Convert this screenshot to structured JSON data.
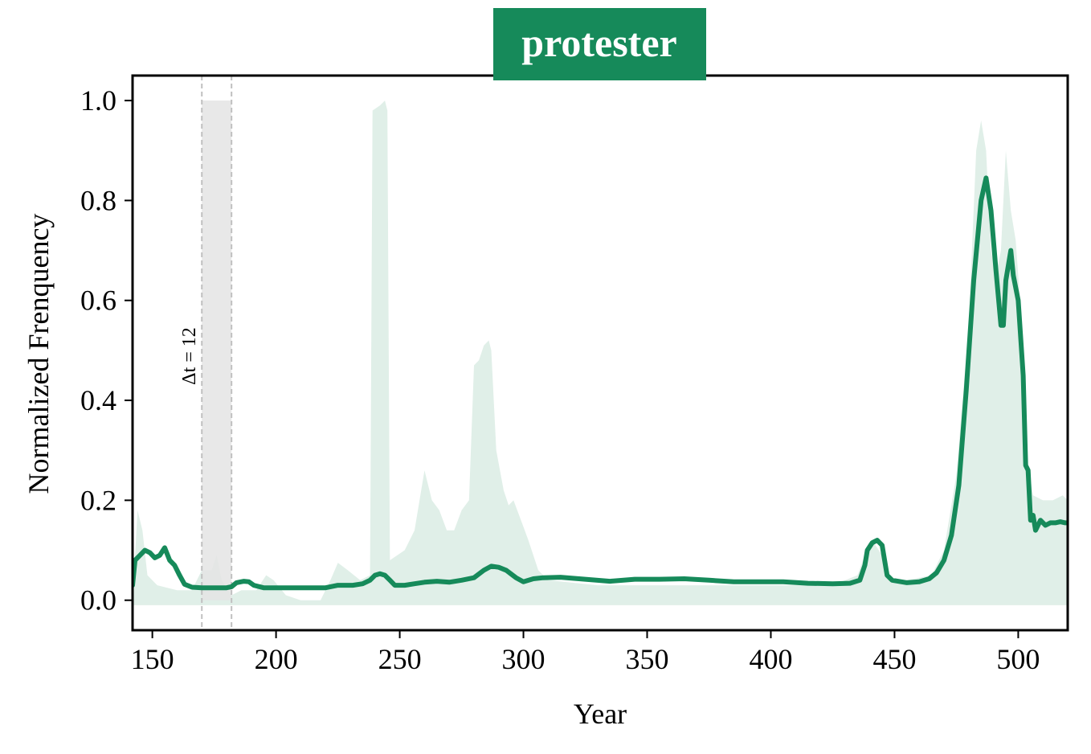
{
  "chart_data": {
    "type": "line",
    "title": "protester",
    "xlabel": "Year",
    "ylabel": "Normalized Frenquency",
    "xlim": [
      142,
      520
    ],
    "ylim": [
      -0.06,
      1.05
    ],
    "xticks": [
      150,
      200,
      250,
      300,
      350,
      400,
      450,
      500
    ],
    "yticks": [
      0.0,
      0.2,
      0.4,
      0.6,
      0.8,
      1.0
    ],
    "xtick_labels": [
      "150",
      "200",
      "250",
      "300",
      "350",
      "400",
      "450",
      "500"
    ],
    "ytick_labels": [
      "0.0",
      "0.2",
      "0.4",
      "0.6",
      "0.8",
      "1.0"
    ],
    "grid": false,
    "colors": {
      "line": "#168a5a",
      "band": "#e0efe8",
      "title_bg": "#168a5a",
      "window": "#e4e4e4",
      "window_edge": "#c0c0c0"
    },
    "window": {
      "x_start": 170,
      "x_end": 182,
      "y_top": 1.0,
      "label": "Δt = 12"
    },
    "band": {
      "upper": [
        [
          142,
          0.0
        ],
        [
          144,
          0.18
        ],
        [
          146,
          0.14
        ],
        [
          148,
          0.05
        ],
        [
          152,
          0.03
        ],
        [
          160,
          0.02
        ],
        [
          166,
          0.02
        ],
        [
          170,
          0.06
        ],
        [
          174,
          0.06
        ],
        [
          176,
          0.09
        ],
        [
          178,
          0.04
        ],
        [
          182,
          0.01
        ],
        [
          186,
          0.02
        ],
        [
          192,
          0.02
        ],
        [
          196,
          0.05
        ],
        [
          199,
          0.04
        ],
        [
          204,
          0.01
        ],
        [
          210,
          0.0
        ],
        [
          218,
          0.0
        ],
        [
          222,
          0.04
        ],
        [
          225,
          0.075
        ],
        [
          229,
          0.06
        ],
        [
          234,
          0.04
        ],
        [
          238,
          0.05
        ],
        [
          239,
          0.98
        ],
        [
          242,
          0.99
        ],
        [
          244,
          1.0
        ],
        [
          245,
          0.98
        ],
        [
          246,
          0.08
        ],
        [
          252,
          0.1
        ],
        [
          256,
          0.14
        ],
        [
          258,
          0.2
        ],
        [
          260,
          0.26
        ],
        [
          263,
          0.2
        ],
        [
          266,
          0.18
        ],
        [
          269,
          0.14
        ],
        [
          272,
          0.14
        ],
        [
          275,
          0.18
        ],
        [
          278,
          0.2
        ],
        [
          280,
          0.47
        ],
        [
          282,
          0.48
        ],
        [
          284,
          0.51
        ],
        [
          286,
          0.52
        ],
        [
          287,
          0.5
        ],
        [
          289,
          0.3
        ],
        [
          292,
          0.22
        ],
        [
          294,
          0.19
        ],
        [
          296,
          0.2
        ],
        [
          299,
          0.16
        ],
        [
          302,
          0.12
        ],
        [
          306,
          0.06
        ],
        [
          310,
          0.04
        ],
        [
          330,
          0.03
        ],
        [
          360,
          0.03
        ],
        [
          400,
          0.03
        ],
        [
          425,
          0.03
        ],
        [
          435,
          0.05
        ],
        [
          438,
          0.09
        ],
        [
          441,
          0.12
        ],
        [
          445,
          0.09
        ],
        [
          448,
          0.04
        ],
        [
          455,
          0.04
        ],
        [
          465,
          0.05
        ],
        [
          470,
          0.1
        ],
        [
          475,
          0.25
        ],
        [
          480,
          0.55
        ],
        [
          483,
          0.9
        ],
        [
          485,
          0.96
        ],
        [
          487,
          0.9
        ],
        [
          489,
          0.7
        ],
        [
          491,
          0.65
        ],
        [
          493,
          0.7
        ],
        [
          495,
          0.9
        ],
        [
          497,
          0.78
        ],
        [
          499,
          0.72
        ],
        [
          501,
          0.58
        ],
        [
          503,
          0.3
        ],
        [
          506,
          0.21
        ],
        [
          510,
          0.2
        ],
        [
          514,
          0.2
        ],
        [
          518,
          0.21
        ],
        [
          520,
          0.2
        ]
      ],
      "lower": -0.01
    },
    "series": [
      {
        "values": [
          [
            142,
            0.03
          ],
          [
            143,
            0.08
          ],
          [
            145,
            0.09
          ],
          [
            147,
            0.1
          ],
          [
            149,
            0.095
          ],
          [
            151,
            0.085
          ],
          [
            153,
            0.09
          ],
          [
            155,
            0.105
          ],
          [
            157,
            0.08
          ],
          [
            159,
            0.07
          ],
          [
            161,
            0.05
          ],
          [
            163,
            0.032
          ],
          [
            166,
            0.026
          ],
          [
            170,
            0.025
          ],
          [
            175,
            0.025
          ],
          [
            180,
            0.025
          ],
          [
            182,
            0.027
          ],
          [
            184,
            0.035
          ],
          [
            187,
            0.038
          ],
          [
            189,
            0.037
          ],
          [
            191,
            0.03
          ],
          [
            195,
            0.025
          ],
          [
            210,
            0.025
          ],
          [
            220,
            0.025
          ],
          [
            225,
            0.03
          ],
          [
            231,
            0.03
          ],
          [
            235,
            0.033
          ],
          [
            238,
            0.04
          ],
          [
            240,
            0.05
          ],
          [
            242,
            0.053
          ],
          [
            244,
            0.05
          ],
          [
            246,
            0.04
          ],
          [
            248,
            0.03
          ],
          [
            252,
            0.03
          ],
          [
            256,
            0.033
          ],
          [
            260,
            0.036
          ],
          [
            265,
            0.038
          ],
          [
            270,
            0.036
          ],
          [
            275,
            0.04
          ],
          [
            280,
            0.045
          ],
          [
            284,
            0.06
          ],
          [
            287,
            0.068
          ],
          [
            290,
            0.066
          ],
          [
            293,
            0.06
          ],
          [
            297,
            0.045
          ],
          [
            300,
            0.037
          ],
          [
            304,
            0.043
          ],
          [
            308,
            0.045
          ],
          [
            315,
            0.046
          ],
          [
            325,
            0.042
          ],
          [
            335,
            0.038
          ],
          [
            345,
            0.042
          ],
          [
            355,
            0.042
          ],
          [
            365,
            0.043
          ],
          [
            375,
            0.04
          ],
          [
            385,
            0.037
          ],
          [
            395,
            0.037
          ],
          [
            405,
            0.037
          ],
          [
            415,
            0.034
          ],
          [
            425,
            0.033
          ],
          [
            432,
            0.034
          ],
          [
            436,
            0.04
          ],
          [
            438,
            0.07
          ],
          [
            439,
            0.1
          ],
          [
            441,
            0.115
          ],
          [
            443,
            0.12
          ],
          [
            445,
            0.11
          ],
          [
            446,
            0.08
          ],
          [
            447,
            0.05
          ],
          [
            449,
            0.04
          ],
          [
            455,
            0.035
          ],
          [
            460,
            0.037
          ],
          [
            464,
            0.043
          ],
          [
            467,
            0.055
          ],
          [
            470,
            0.08
          ],
          [
            473,
            0.13
          ],
          [
            476,
            0.23
          ],
          [
            479,
            0.42
          ],
          [
            482,
            0.64
          ],
          [
            485,
            0.8
          ],
          [
            487,
            0.845
          ],
          [
            489,
            0.78
          ],
          [
            491,
            0.66
          ],
          [
            493,
            0.55
          ],
          [
            494,
            0.55
          ],
          [
            495,
            0.64
          ],
          [
            497,
            0.7
          ],
          [
            498,
            0.65
          ],
          [
            500,
            0.6
          ],
          [
            502,
            0.45
          ],
          [
            503,
            0.27
          ],
          [
            504,
            0.26
          ],
          [
            505,
            0.16
          ],
          [
            506,
            0.17
          ],
          [
            507,
            0.14
          ],
          [
            509,
            0.16
          ],
          [
            511,
            0.15
          ],
          [
            513,
            0.155
          ],
          [
            515,
            0.155
          ],
          [
            517,
            0.157
          ],
          [
            519,
            0.155
          ],
          [
            520,
            0.155
          ]
        ]
      }
    ]
  }
}
